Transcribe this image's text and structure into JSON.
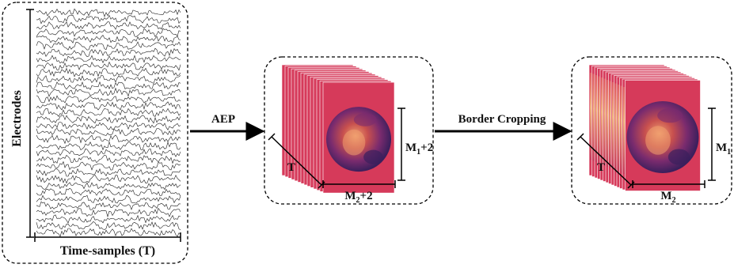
{
  "left_panel": {
    "y_label": "Electrodes",
    "x_label": "Time-samples (T)"
  },
  "arrow_1": {
    "label": "AEP"
  },
  "middle_panel": {
    "depth_label": "T",
    "height_label_base": "M",
    "height_label_sub": "1",
    "height_label_suffix": "+2",
    "width_label_base": "M",
    "width_label_sub": "2",
    "width_label_suffix": "+2"
  },
  "arrow_2": {
    "label": "Border Cropping"
  },
  "right_panel": {
    "depth_label": "T",
    "height_label_base": "M",
    "height_label_sub": "1",
    "width_label_base": "M",
    "width_label_sub": "2"
  },
  "colors": {
    "heatmap_border": "#d63a5a",
    "heatmap_mid": "#7a2b6e",
    "heatmap_dark": "#3b1f5c",
    "heatmap_light": "#f0a070",
    "eeg_trace": "#1a1a1a"
  }
}
